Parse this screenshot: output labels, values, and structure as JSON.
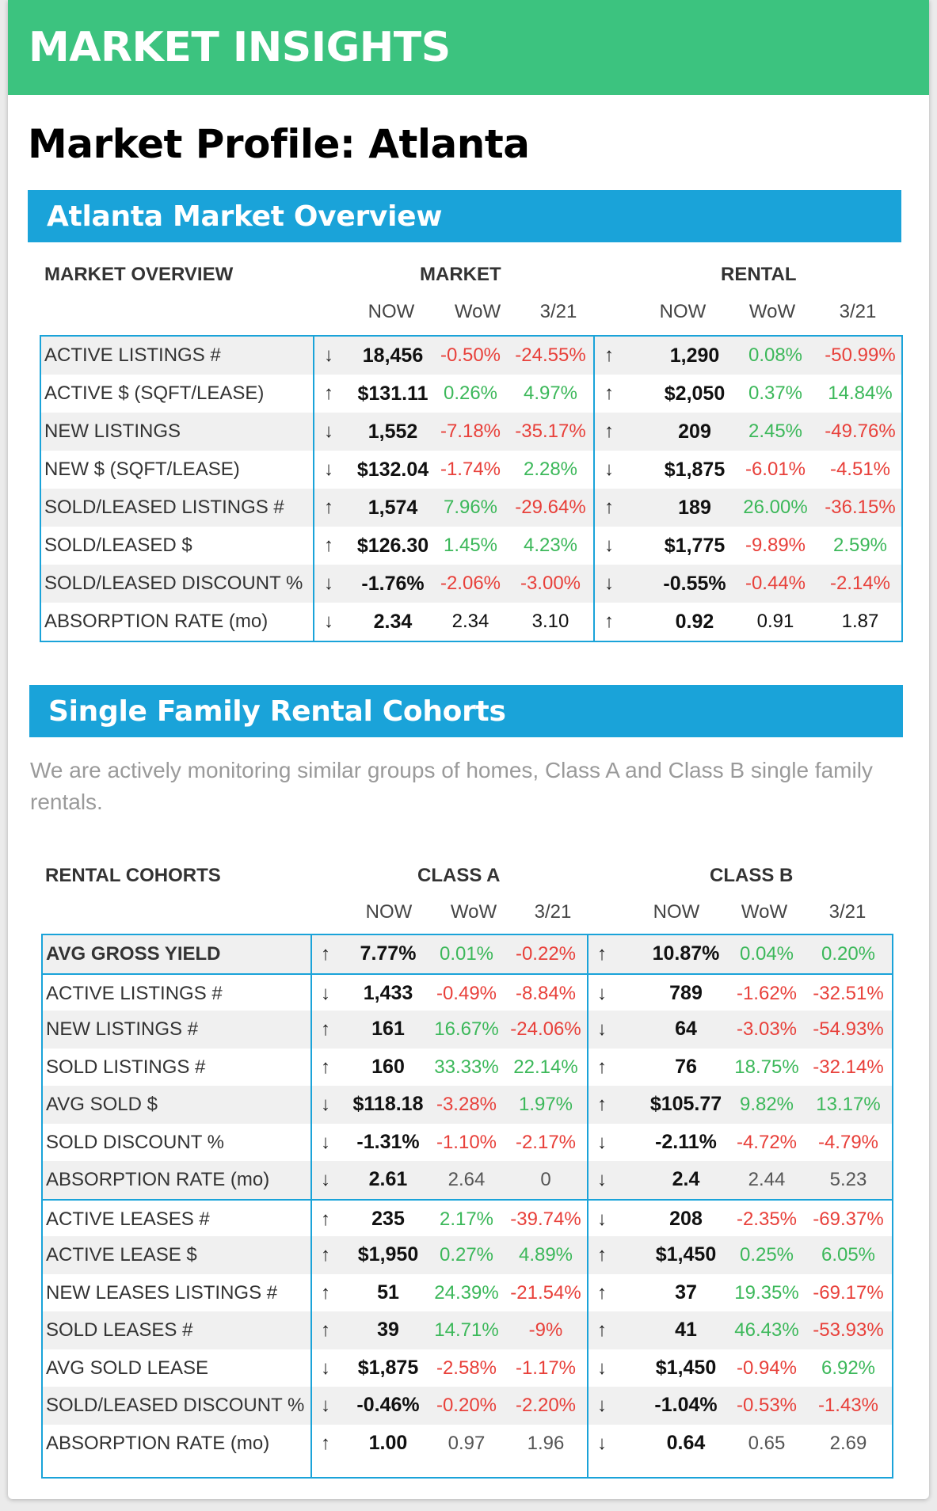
{
  "banner": {
    "title": "MARKET INSIGHTS"
  },
  "profile_title": "Market Profile: Atlanta",
  "overview": {
    "section_title": "Atlanta Market Overview",
    "header_label": "MARKET OVERVIEW",
    "group_a": "MARKET",
    "group_b": "RENTAL",
    "sub_headers": [
      "NOW",
      "WoW",
      "3/21"
    ],
    "rows": [
      {
        "label": "ACTIVE LISTINGS #",
        "a_arrow": "↓",
        "a_now": "18,456",
        "a_wow": "-0.50%",
        "a_wow_c": "red",
        "a_yr": "-24.55%",
        "a_yr_c": "red",
        "b_arrow": "↑",
        "b_now": "1,290",
        "b_wow": "0.08%",
        "b_wow_c": "green",
        "b_yr": "-50.99%",
        "b_yr_c": "red"
      },
      {
        "label": "ACTIVE $ (SQFT/LEASE)",
        "a_arrow": "↑",
        "a_now": "$131.11",
        "a_wow": "0.26%",
        "a_wow_c": "green",
        "a_yr": "4.97%",
        "a_yr_c": "green",
        "b_arrow": "↑",
        "b_now": "$2,050",
        "b_wow": "0.37%",
        "b_wow_c": "green",
        "b_yr": "14.84%",
        "b_yr_c": "green"
      },
      {
        "label": "NEW LISTINGS",
        "a_arrow": "↓",
        "a_now": "1,552",
        "a_wow": "-7.18%",
        "a_wow_c": "red",
        "a_yr": "-35.17%",
        "a_yr_c": "red",
        "b_arrow": "↑",
        "b_now": "209",
        "b_wow": "2.45%",
        "b_wow_c": "green",
        "b_yr": "-49.76%",
        "b_yr_c": "red"
      },
      {
        "label": "NEW $ (SQFT/LEASE)",
        "a_arrow": "↓",
        "a_now": "$132.04",
        "a_wow": "-1.74%",
        "a_wow_c": "red",
        "a_yr": "2.28%",
        "a_yr_c": "green",
        "b_arrow": "↓",
        "b_now": "$1,875",
        "b_wow": "-6.01%",
        "b_wow_c": "red",
        "b_yr": "-4.51%",
        "b_yr_c": "red"
      },
      {
        "label": "SOLD/LEASED LISTINGS #",
        "a_arrow": "↑",
        "a_now": "1,574",
        "a_wow": "7.96%",
        "a_wow_c": "green",
        "a_yr": "-29.64%",
        "a_yr_c": "red",
        "b_arrow": "↑",
        "b_now": "189",
        "b_wow": "26.00%",
        "b_wow_c": "green",
        "b_yr": "-36.15%",
        "b_yr_c": "red"
      },
      {
        "label": "SOLD/LEASED $",
        "a_arrow": "↑",
        "a_now": "$126.30",
        "a_wow": "1.45%",
        "a_wow_c": "green",
        "a_yr": "4.23%",
        "a_yr_c": "green",
        "b_arrow": "↓",
        "b_now": "$1,775",
        "b_wow": "-9.89%",
        "b_wow_c": "red",
        "b_yr": "2.59%",
        "b_yr_c": "green"
      },
      {
        "label": "SOLD/LEASED DISCOUNT %",
        "a_arrow": "↓",
        "a_now": "-1.76%",
        "a_wow": "-2.06%",
        "a_wow_c": "red",
        "a_yr": "-3.00%",
        "a_yr_c": "red",
        "b_arrow": "↓",
        "b_now": "-0.55%",
        "b_wow": "-0.44%",
        "b_wow_c": "red",
        "b_yr": "-2.14%",
        "b_yr_c": "red"
      },
      {
        "label": "ABSORPTION RATE (mo)",
        "a_arrow": "↓",
        "a_now": "2.34",
        "a_wow": "2.34",
        "a_wow_c": "black",
        "a_yr": "3.10",
        "a_yr_c": "black",
        "b_arrow": "↑",
        "b_now": "0.92",
        "b_wow": "0.91",
        "b_wow_c": "black",
        "b_yr": "1.87",
        "b_yr_c": "black"
      }
    ]
  },
  "cohorts": {
    "section_title": "Single Family Rental Cohorts",
    "description": "We are actively monitoring similar groups of homes, Class A and Class B single family rentals.",
    "header_label": "RENTAL COHORTS",
    "group_a": "CLASS A",
    "group_b": "CLASS B",
    "sub_headers": [
      "NOW",
      "WoW",
      "3/21"
    ],
    "rows": [
      {
        "label": "AVG GROSS YIELD",
        "bold": true,
        "a_arrow": "↑",
        "a_now": "7.77%",
        "a_wow": "0.01%",
        "a_wow_c": "green",
        "a_yr": "-0.22%",
        "a_yr_c": "red",
        "b_arrow": "↑",
        "b_now": "10.87%",
        "b_wow": "0.04%",
        "b_wow_c": "green",
        "b_yr": "0.20%",
        "b_yr_c": "green"
      },
      {
        "label": "ACTIVE LISTINGS #",
        "a_arrow": "↓",
        "a_now": "1,433",
        "a_wow": "-0.49%",
        "a_wow_c": "red",
        "a_yr": "-8.84%",
        "a_yr_c": "red",
        "b_arrow": "↓",
        "b_now": "789",
        "b_wow": "-1.62%",
        "b_wow_c": "red",
        "b_yr": "-32.51%",
        "b_yr_c": "red"
      },
      {
        "label": "NEW LISTINGS #",
        "a_arrow": "↑",
        "a_now": "161",
        "a_wow": "16.67%",
        "a_wow_c": "green",
        "a_yr": "-24.06%",
        "a_yr_c": "red",
        "b_arrow": "↓",
        "b_now": "64",
        "b_wow": "-3.03%",
        "b_wow_c": "red",
        "b_yr": "-54.93%",
        "b_yr_c": "red"
      },
      {
        "label": "SOLD LISTINGS #",
        "a_arrow": "↑",
        "a_now": "160",
        "a_wow": "33.33%",
        "a_wow_c": "green",
        "a_yr": "22.14%",
        "a_yr_c": "green",
        "b_arrow": "↑",
        "b_now": "76",
        "b_wow": "18.75%",
        "b_wow_c": "green",
        "b_yr": "-32.14%",
        "b_yr_c": "red"
      },
      {
        "label": "AVG SOLD $",
        "a_arrow": "↓",
        "a_now": "$118.18",
        "a_wow": "-3.28%",
        "a_wow_c": "red",
        "a_yr": "1.97%",
        "a_yr_c": "green",
        "b_arrow": "↑",
        "b_now": "$105.77",
        "b_wow": "9.82%",
        "b_wow_c": "green",
        "b_yr": "13.17%",
        "b_yr_c": "green"
      },
      {
        "label": "SOLD DISCOUNT %",
        "a_arrow": "↓",
        "a_now": "-1.31%",
        "a_wow": "-1.10%",
        "a_wow_c": "red",
        "a_yr": "-2.17%",
        "a_yr_c": "red",
        "b_arrow": "↓",
        "b_now": "-2.11%",
        "b_wow": "-4.72%",
        "b_wow_c": "red",
        "b_yr": "-4.79%",
        "b_yr_c": "red"
      },
      {
        "label": "ABSORPTION RATE (mo)",
        "a_arrow": "↓",
        "a_now": "2.61",
        "a_wow": "2.64",
        "a_wow_c": "gray",
        "a_yr": "0",
        "a_yr_c": "gray",
        "b_arrow": "↓",
        "b_now": "2.4",
        "b_wow": "2.44",
        "b_wow_c": "gray",
        "b_yr": "5.23",
        "b_yr_c": "gray"
      },
      {
        "label": "ACTIVE LEASES #",
        "a_arrow": "↑",
        "a_now": "235",
        "a_wow": "2.17%",
        "a_wow_c": "green",
        "a_yr": "-39.74%",
        "a_yr_c": "red",
        "b_arrow": "↓",
        "b_now": "208",
        "b_wow": "-2.35%",
        "b_wow_c": "red",
        "b_yr": "-69.37%",
        "b_yr_c": "red"
      },
      {
        "label": "ACTIVE LEASE $",
        "a_arrow": "↑",
        "a_now": "$1,950",
        "a_wow": "0.27%",
        "a_wow_c": "green",
        "a_yr": "4.89%",
        "a_yr_c": "green",
        "b_arrow": "↑",
        "b_now": "$1,450",
        "b_wow": "0.25%",
        "b_wow_c": "green",
        "b_yr": "6.05%",
        "b_yr_c": "green"
      },
      {
        "label": "NEW LEASES LISTINGS #",
        "a_arrow": "↑",
        "a_now": "51",
        "a_wow": "24.39%",
        "a_wow_c": "green",
        "a_yr": "-21.54%",
        "a_yr_c": "red",
        "b_arrow": "↑",
        "b_now": "37",
        "b_wow": "19.35%",
        "b_wow_c": "green",
        "b_yr": "-69.17%",
        "b_yr_c": "red"
      },
      {
        "label": "SOLD LEASES #",
        "a_arrow": "↑",
        "a_now": "39",
        "a_wow": "14.71%",
        "a_wow_c": "green",
        "a_yr": "-9%",
        "a_yr_c": "red",
        "b_arrow": "↑",
        "b_now": "41",
        "b_wow": "46.43%",
        "b_wow_c": "green",
        "b_yr": "-53.93%",
        "b_yr_c": "red"
      },
      {
        "label": "AVG SOLD LEASE",
        "a_arrow": "↓",
        "a_now": "$1,875",
        "a_wow": "-2.58%",
        "a_wow_c": "red",
        "a_yr": "-1.17%",
        "a_yr_c": "red",
        "b_arrow": "↓",
        "b_now": "$1,450",
        "b_wow": "-0.94%",
        "b_wow_c": "red",
        "b_yr": "6.92%",
        "b_yr_c": "green"
      },
      {
        "label": "SOLD/LEASED DISCOUNT %",
        "a_arrow": "↓",
        "a_now": "-0.46%",
        "a_wow": "-0.20%",
        "a_wow_c": "red",
        "a_yr": "-2.20%",
        "a_yr_c": "red",
        "b_arrow": "↓",
        "b_now": "-1.04%",
        "b_wow": "-0.53%",
        "b_wow_c": "red",
        "b_yr": "-1.43%",
        "b_yr_c": "red"
      },
      {
        "label": "ABSORPTION RATE (mo)",
        "a_arrow": "↑",
        "a_now": "1.00",
        "a_wow": "0.97",
        "a_wow_c": "gray",
        "a_yr": "1.96",
        "a_yr_c": "gray",
        "b_arrow": "↓",
        "b_now": "0.64",
        "b_wow": "0.65",
        "b_wow_c": "gray",
        "b_yr": "2.69",
        "b_yr_c": "gray"
      }
    ]
  },
  "colors": {
    "green": "#3cb85a",
    "red": "#e8403a",
    "black": "#111111",
    "gray": "#555555",
    "accent": "#1aa3d9",
    "banner": "#3cc37f"
  }
}
